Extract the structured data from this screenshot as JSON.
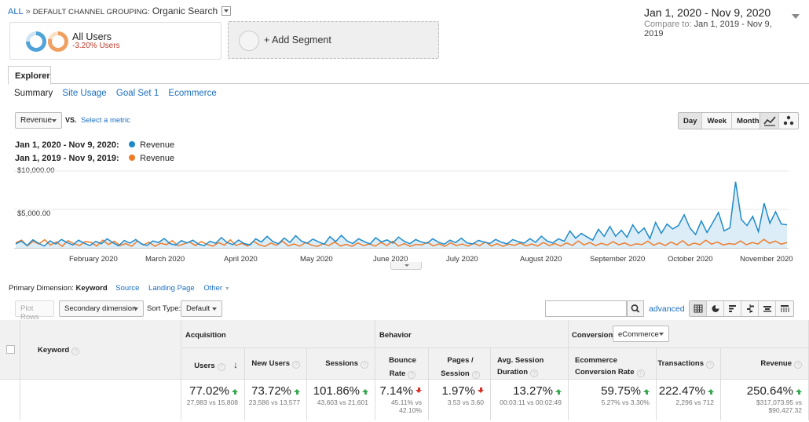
{
  "breadcrumb": {
    "all": "ALL",
    "separator": "»",
    "grouping": "DEFAULT CHANNEL GROUPING:",
    "value": "Organic Search"
  },
  "date_range": {
    "main": "Jan 1, 2020 - Nov 9, 2020",
    "compare_label": "Compare to:",
    "compare_value": "Jan 1, 2019 - Nov 9, 2019"
  },
  "segments": {
    "all_users": {
      "name": "All Users",
      "delta": "-3.20% Users"
    },
    "add_segment": "+ Add Segment"
  },
  "tabs": {
    "explorer": "Explorer"
  },
  "subtabs": [
    "Summary",
    "Site Usage",
    "Goal Set 1",
    "Ecommerce"
  ],
  "chart_controls": {
    "metric": "Revenue",
    "vs": "VS.",
    "select_metric": "Select a metric",
    "periods": [
      "Day",
      "Week",
      "Month"
    ],
    "active_period": "Day"
  },
  "legend": [
    {
      "range": "Jan 1, 2020 - Nov 9, 2020:",
      "metric": "Revenue",
      "color": "#1f8ac9"
    },
    {
      "range": "Jan 1, 2019 - Nov 9, 2019:",
      "metric": "Revenue",
      "color": "#ef7c2a"
    }
  ],
  "chart_data": {
    "type": "line",
    "y_ticks": [
      "$10,000.00",
      "$5,000.00"
    ],
    "ylim": [
      0,
      10000
    ],
    "x_tick_labels": [
      "February 2020",
      "March 2020",
      "April 2020",
      "May 2020",
      "June 2020",
      "July 2020",
      "August 2020",
      "September 2020",
      "October 2020",
      "November 2020"
    ],
    "series": [
      {
        "name": "Jan 1, 2020 - Nov 9, 2020",
        "color": "#1f8ac9",
        "fill": "#dcedf8",
        "values": [
          520,
          880,
          300,
          1050,
          600,
          240,
          920,
          500,
          1100,
          700,
          380,
          1000,
          600,
          300,
          850,
          540,
          1180,
          680,
          260,
          960,
          620,
          1080,
          520,
          310,
          900,
          700,
          1220,
          560,
          360,
          940,
          640,
          1000,
          480,
          300,
          860,
          600,
          1340,
          700,
          420,
          1020,
          560,
          380,
          1180,
          760,
          1500,
          820,
          540,
          1280,
          700,
          1580,
          880,
          600,
          1140,
          780,
          480,
          1460,
          820,
          1620,
          900,
          560,
          1180,
          820,
          500,
          1320,
          780,
          1040,
          620,
          1400,
          860,
          540,
          1080,
          760,
          600,
          1180,
          740,
          480,
          1000,
          700,
          1260,
          640,
          520,
          980,
          760,
          580,
          1100,
          740,
          520,
          1080,
          800,
          620,
          1200,
          720,
          1520,
          900,
          640,
          1180,
          860,
          2200,
          1260,
          1880,
          1420,
          1000,
          2420,
          1500,
          2780,
          1520,
          2300,
          1380,
          3000,
          1900,
          2580,
          1200,
          3300,
          1900,
          3100,
          2460,
          2900,
          4300,
          2600,
          1740,
          3500,
          2000,
          3280,
          4600,
          2220,
          2600,
          8600,
          3700,
          2900,
          4100,
          2100,
          5800,
          3200,
          4700,
          3100,
          3000
        ]
      },
      {
        "name": "Jan 1, 2019 - Nov 9, 2019",
        "color": "#ef7c2a",
        "values": [
          640,
          1000,
          260,
          880,
          500,
          1060,
          360,
          780,
          200,
          940,
          560,
          300,
          820,
          700,
          240,
          1000,
          440,
          860,
          320,
          560,
          200,
          900,
          380,
          740,
          200,
          600,
          420,
          940,
          260,
          500,
          760,
          300,
          820,
          460,
          220,
          680,
          360,
          1040,
          300,
          580,
          240,
          840,
          400,
          200,
          620,
          340,
          880,
          260,
          500,
          220,
          700,
          360,
          180,
          540,
          300,
          760,
          240,
          460,
          200,
          640,
          280,
          520,
          220,
          700,
          300,
          860,
          240,
          560,
          200,
          440,
          380,
          720,
          260,
          520,
          200,
          660,
          300,
          500,
          240,
          580,
          280,
          780,
          240,
          540,
          200,
          480,
          320,
          620,
          260,
          500,
          240,
          700,
          300,
          560,
          240,
          640,
          320,
          900,
          380,
          700,
          300,
          600,
          360,
          800,
          400,
          640,
          300,
          540,
          420,
          880,
          340,
          660,
          300,
          760,
          400,
          940,
          320,
          620,
          420,
          1000,
          480,
          760,
          380,
          560,
          460,
          900,
          400,
          700,
          500,
          1100,
          600,
          880,
          480,
          700
        ]
      }
    ]
  },
  "primary_dimension": {
    "label": "Primary Dimension:",
    "active": "Keyword",
    "options": [
      "Source",
      "Landing Page",
      "Other"
    ]
  },
  "table_controls": {
    "plot_rows": "Plot Rows",
    "secondary_dimension": "Secondary dimension",
    "sort_type_label": "Sort Type:",
    "sort_type": "Default",
    "search_placeholder": "",
    "advanced": "advanced"
  },
  "table": {
    "keyword_header": "Keyword",
    "groups": {
      "acquisition": "Acquisition",
      "behavior": "Behavior",
      "conversions": "Conversions",
      "conversions_select": "eCommerce"
    },
    "columns": [
      {
        "label": "Users",
        "value": "77.02%",
        "sub": "27,983 vs 15,808",
        "trend": "up"
      },
      {
        "label": "New Users",
        "value": "73.72%",
        "sub": "23,586 vs 13,577",
        "trend": "up"
      },
      {
        "label": "Sessions",
        "value": "101.86%",
        "sub": "43,603 vs 21,601",
        "trend": "up"
      },
      {
        "label": "Bounce Rate",
        "value": "7.14%",
        "sub": "45.11% vs 42.10%",
        "trend": "down"
      },
      {
        "label": "Pages / Session",
        "value": "1.97%",
        "sub": "3.53 vs 3.60",
        "trend": "down"
      },
      {
        "label": "Avg. Session Duration",
        "value": "13.27%",
        "sub": "00:03:11 vs 00:02:49",
        "trend": "up"
      },
      {
        "label": "Ecommerce Conversion Rate",
        "value": "59.75%",
        "sub": "5.27% vs 3.30%",
        "trend": "up"
      },
      {
        "label": "Transactions",
        "value": "222.47%",
        "sub": "2,296 vs 712",
        "trend": "up"
      },
      {
        "label": "Revenue",
        "value": "250.64%",
        "sub": "$317,073.95 vs $90,427.32",
        "trend": "up"
      }
    ]
  }
}
